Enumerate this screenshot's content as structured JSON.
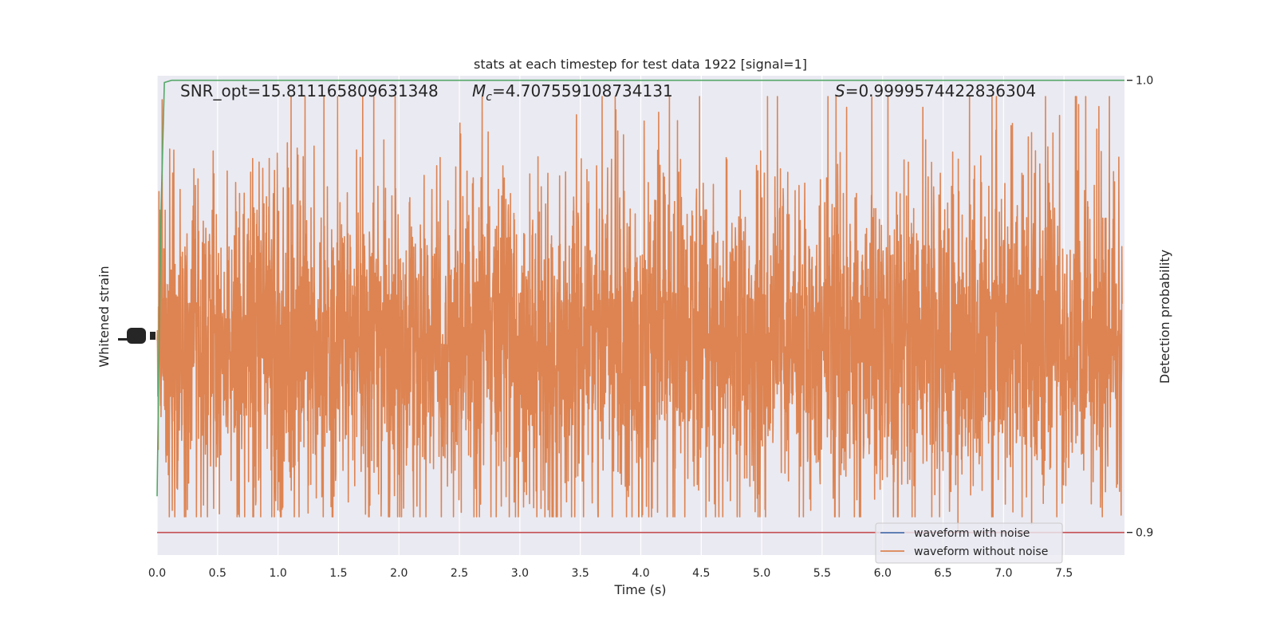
{
  "chart_data": {
    "type": "line",
    "title": "stats at each timestep for test data 1922 [signal=1]",
    "stats": {
      "snr_opt": "SNR_opt=15.811165809631348",
      "mc_symbol": "M",
      "mc_subscript": "c",
      "mc_value": "=4.707559108734131",
      "s_symbol": "S",
      "s_value": "=0.9999574422836304"
    },
    "xlabel": "Time (s)",
    "ylabel_left": "Whitened strain",
    "ylabel_right": "Detection probability",
    "xlim": [
      0.0,
      8.0
    ],
    "x_ticks": [
      "0.0",
      "0.5",
      "1.0",
      "1.5",
      "2.0",
      "2.5",
      "3.0",
      "3.5",
      "4.0",
      "4.5",
      "5.0",
      "5.5",
      "6.0",
      "6.5",
      "7.0",
      "7.5"
    ],
    "x_tick_values": [
      0.0,
      0.5,
      1.0,
      1.5,
      2.0,
      2.5,
      3.0,
      3.5,
      4.0,
      4.5,
      5.0,
      5.5,
      6.0,
      6.5,
      7.0,
      7.5
    ],
    "right_ylim": [
      0.895,
      1.001
    ],
    "right_ticks": [
      "0.9",
      "1.0"
    ],
    "right_tick_values": [
      0.9,
      1.0
    ],
    "grid": true,
    "legend_position": "lower-right",
    "series": [
      {
        "name": "waveform with noise",
        "color": "#4c72b0",
        "axis": "left",
        "note_visible": false
      },
      {
        "name": "waveform without noise",
        "color": "#dd8452",
        "axis": "left",
        "amplitude_profile": {
          "center_fraction": 0.55,
          "typical_half_range_fraction": 0.25,
          "peak_max_fraction": 1.0,
          "peak_min_fraction": 0.06
        }
      },
      {
        "name": "detection probability",
        "color": "#55a868",
        "axis": "right",
        "x": [
          0.0,
          0.03,
          0.06,
          0.12,
          8.0
        ],
        "y": [
          0.908,
          0.968,
          0.9995,
          1.0,
          1.0
        ]
      },
      {
        "name": "threshold",
        "color": "#c44e52",
        "axis": "right",
        "x": [
          0.0,
          8.0
        ],
        "y": [
          0.9,
          0.9
        ]
      }
    ],
    "colors": {
      "plot_background": "#eaeaf2",
      "grid": "#ffffff",
      "text": "#262626"
    }
  }
}
